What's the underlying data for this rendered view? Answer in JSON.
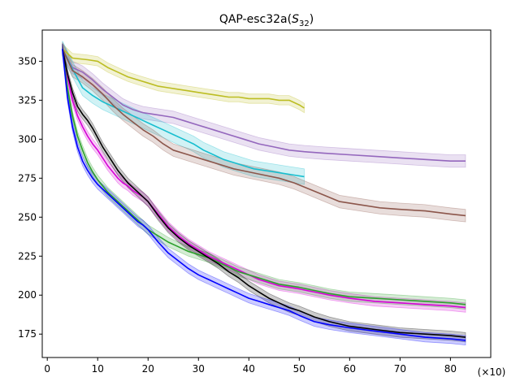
{
  "chart_data": {
    "type": "line",
    "title_prefix": "QAP-esc32a(",
    "title_var": "S",
    "title_sub": "32",
    "title_suffix": ")",
    "xlabel": "",
    "ylabel": "",
    "x_multiplier_label": "(×10)",
    "xlim": [
      -1,
      88
    ],
    "ylim": [
      160,
      370
    ],
    "xticks": [
      0,
      10,
      20,
      30,
      40,
      50,
      60,
      70,
      80
    ],
    "yticks": [
      175,
      200,
      225,
      250,
      275,
      300,
      325,
      350
    ],
    "grid": false,
    "series": [
      {
        "name": "olive",
        "color": "#bcbd22",
        "band": 3,
        "x": [
          3,
          5,
          8,
          10,
          12,
          14,
          16,
          18,
          20,
          22,
          24,
          26,
          28,
          30,
          32,
          34,
          36,
          38,
          40,
          42,
          44,
          46,
          48,
          50,
          51
        ],
        "y": [
          358,
          352,
          351,
          350,
          346,
          343,
          340,
          338,
          336,
          334,
          333,
          332,
          331,
          330,
          329,
          328,
          327,
          327,
          326,
          326,
          326,
          325,
          325,
          322,
          320
        ]
      },
      {
        "name": "purple",
        "color": "#9467bd",
        "band": 4,
        "x": [
          3,
          5,
          7,
          9,
          11,
          13,
          15,
          17,
          19,
          21,
          23,
          25,
          27,
          30,
          33,
          36,
          39,
          42,
          45,
          48,
          51,
          55,
          60,
          65,
          70,
          75,
          80,
          83
        ],
        "y": [
          358,
          346,
          343,
          338,
          332,
          327,
          322,
          319,
          317,
          316,
          315,
          314,
          312,
          309,
          306,
          303,
          300,
          297,
          295,
          293,
          292,
          291,
          290,
          289,
          288,
          287,
          286,
          286
        ]
      },
      {
        "name": "cyan",
        "color": "#17becf",
        "band": 5,
        "x": [
          3,
          5,
          7,
          9,
          11,
          13,
          15,
          17,
          19,
          21,
          23,
          25,
          27,
          29,
          31,
          33,
          35,
          37,
          39,
          41,
          43,
          45,
          47,
          49,
          51
        ],
        "y": [
          358,
          345,
          333,
          328,
          324,
          321,
          318,
          315,
          312,
          309,
          306,
          303,
          300,
          297,
          293,
          290,
          287,
          285,
          283,
          281,
          280,
          279,
          278,
          277,
          276
        ]
      },
      {
        "name": "brown",
        "color": "#8c564b",
        "band": 4,
        "x": [
          3,
          5,
          7,
          9,
          11,
          13,
          15,
          17,
          19,
          21,
          23,
          25,
          28,
          31,
          34,
          37,
          40,
          43,
          46,
          49,
          52,
          55,
          58,
          62,
          66,
          70,
          75,
          80,
          83
        ],
        "y": [
          358,
          344,
          340,
          335,
          329,
          322,
          316,
          311,
          306,
          302,
          297,
          293,
          290,
          287,
          284,
          281,
          279,
          277,
          275,
          272,
          268,
          264,
          260,
          258,
          256,
          255,
          254,
          252,
          251
        ]
      },
      {
        "name": "magenta",
        "color": "#d600d6",
        "band": 3,
        "x": [
          3,
          4,
          5,
          6,
          7,
          8,
          9,
          10,
          11,
          12,
          13,
          14,
          15,
          16,
          17,
          18,
          19,
          20,
          22,
          24,
          26,
          28,
          30,
          32,
          34,
          36,
          38,
          40,
          42,
          44,
          46,
          48,
          50,
          53,
          56,
          60,
          65,
          70,
          75,
          80,
          83
        ],
        "y": [
          358,
          340,
          325,
          315,
          308,
          302,
          297,
          293,
          288,
          283,
          279,
          275,
          272,
          270,
          267,
          265,
          263,
          260,
          252,
          244,
          238,
          233,
          229,
          225,
          222,
          219,
          216,
          213,
          210,
          208,
          206,
          205,
          204,
          202,
          200,
          198,
          196,
          195,
          194,
          193,
          192
        ]
      },
      {
        "name": "green",
        "color": "#2ca02c",
        "band": 3,
        "x": [
          3,
          4,
          5,
          6,
          7,
          8,
          9,
          10,
          11,
          12,
          13,
          14,
          15,
          16,
          17,
          18,
          19,
          20,
          22,
          24,
          26,
          28,
          30,
          32,
          34,
          36,
          38,
          40,
          42,
          44,
          46,
          48,
          50,
          53,
          56,
          60,
          65,
          70,
          75,
          80,
          83
        ],
        "y": [
          358,
          333,
          315,
          302,
          293,
          285,
          279,
          274,
          270,
          266,
          263,
          260,
          257,
          254,
          251,
          248,
          245,
          242,
          238,
          234,
          231,
          228,
          226,
          224,
          221,
          218,
          215,
          213,
          211,
          209,
          207,
          206,
          205,
          203,
          201,
          199,
          198,
          197,
          196,
          195,
          194
        ]
      },
      {
        "name": "black",
        "color": "#000000",
        "band": 3,
        "x": [
          3,
          4,
          5,
          6,
          7,
          8,
          9,
          10,
          11,
          12,
          13,
          14,
          15,
          16,
          17,
          18,
          19,
          20,
          22,
          24,
          26,
          28,
          30,
          32,
          34,
          36,
          38,
          40,
          42,
          44,
          46,
          48,
          50,
          53,
          56,
          60,
          65,
          70,
          75,
          80,
          83
        ],
        "y": [
          358,
          342,
          330,
          321,
          316,
          312,
          307,
          301,
          295,
          290,
          285,
          280,
          276,
          272,
          269,
          266,
          263,
          260,
          251,
          243,
          237,
          232,
          228,
          224,
          220,
          215,
          211,
          206,
          202,
          198,
          195,
          192,
          190,
          186,
          183,
          180,
          178,
          176,
          175,
          174,
          173
        ]
      },
      {
        "name": "blue",
        "color": "#0000ff",
        "band": 3,
        "x": [
          3,
          4,
          5,
          6,
          7,
          8,
          9,
          10,
          11,
          12,
          13,
          14,
          15,
          16,
          17,
          18,
          19,
          20,
          22,
          24,
          26,
          28,
          30,
          32,
          34,
          36,
          38,
          40,
          42,
          44,
          46,
          48,
          50,
          53,
          56,
          60,
          65,
          70,
          75,
          80,
          83
        ],
        "y": [
          358,
          327,
          308,
          295,
          286,
          280,
          275,
          271,
          268,
          265,
          262,
          259,
          256,
          253,
          250,
          247,
          245,
          242,
          234,
          227,
          222,
          217,
          213,
          210,
          207,
          204,
          201,
          198,
          196,
          194,
          192,
          190,
          187,
          183,
          181,
          179,
          177,
          175,
          173,
          172,
          171
        ]
      }
    ]
  }
}
